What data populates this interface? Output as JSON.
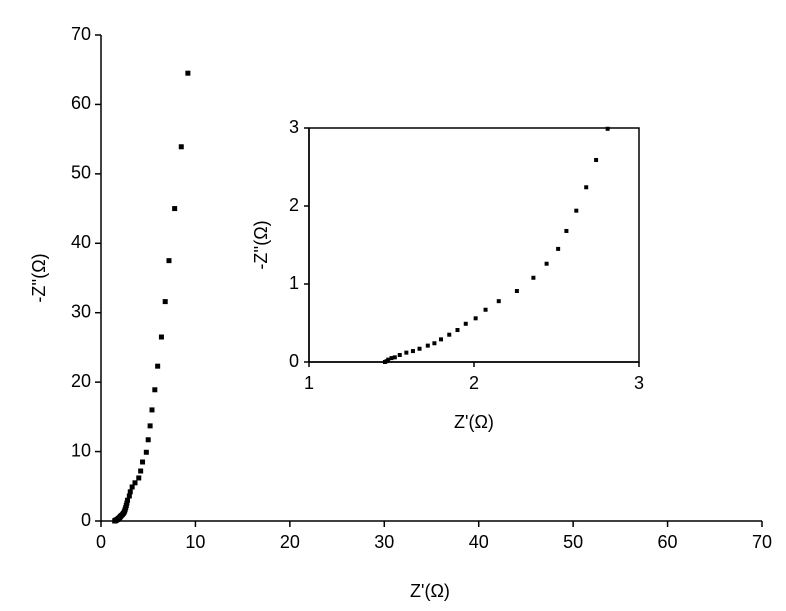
{
  "chart_data": [
    {
      "type": "scatter",
      "x_label": "Z'(Ω)",
      "y_label": "-Z''(Ω)",
      "color": "#000000",
      "box": false,
      "x": [
        1.46,
        1.47,
        1.48,
        1.5,
        1.52,
        1.55,
        1.59,
        1.63,
        1.67,
        1.72,
        1.76,
        1.8,
        1.85,
        1.9,
        1.95,
        2.01,
        2.07,
        2.15,
        2.26,
        2.36,
        2.44,
        2.51,
        2.56,
        2.62,
        2.68,
        2.74,
        2.81,
        3.0,
        3.1,
        3.3,
        3.6,
        4.0,
        4.2,
        4.4,
        4.8,
        5.0,
        5.2,
        5.4,
        5.7,
        6.0,
        6.4,
        6.8,
        7.2,
        7.8,
        8.5,
        9.2
      ],
      "values": [
        0.0,
        0.01,
        0.03,
        0.05,
        0.06,
        0.09,
        0.12,
        0.14,
        0.17,
        0.21,
        0.24,
        0.29,
        0.35,
        0.41,
        0.49,
        0.56,
        0.67,
        0.78,
        0.91,
        1.08,
        1.26,
        1.45,
        1.68,
        1.94,
        2.24,
        2.59,
        2.99,
        3.6,
        4.2,
        4.9,
        5.5,
        6.2,
        7.2,
        8.5,
        9.9,
        11.7,
        13.7,
        16.0,
        18.9,
        22.3,
        26.5,
        31.6,
        37.5,
        45.0,
        53.9,
        64.5
      ],
      "xlim": [
        0,
        70
      ],
      "xticks": [
        0,
        10,
        20,
        30,
        40,
        50,
        60,
        70
      ],
      "ylim": [
        0,
        70
      ],
      "yticks": [
        0,
        10,
        20,
        30,
        40,
        50,
        60,
        70
      ]
    },
    {
      "type": "scatter",
      "x_label": "Z'(Ω)",
      "y_label": "-Z''(Ω)",
      "color": "#000000",
      "box": true,
      "x": [
        1.46,
        1.47,
        1.48,
        1.5,
        1.52,
        1.55,
        1.59,
        1.63,
        1.67,
        1.72,
        1.76,
        1.8,
        1.85,
        1.9,
        1.95,
        2.01,
        2.07,
        2.15,
        2.26,
        2.36,
        2.44,
        2.51,
        2.56,
        2.62,
        2.68,
        2.74,
        2.81
      ],
      "values": [
        0.0,
        0.01,
        0.03,
        0.05,
        0.06,
        0.09,
        0.12,
        0.14,
        0.17,
        0.21,
        0.24,
        0.29,
        0.35,
        0.41,
        0.49,
        0.56,
        0.67,
        0.78,
        0.91,
        1.08,
        1.26,
        1.45,
        1.68,
        1.94,
        2.24,
        2.59,
        2.99
      ],
      "xlim": [
        1,
        3
      ],
      "xticks": [
        1,
        2,
        3
      ],
      "ylim": [
        0,
        3
      ],
      "yticks": [
        0,
        1,
        2,
        3
      ]
    }
  ]
}
